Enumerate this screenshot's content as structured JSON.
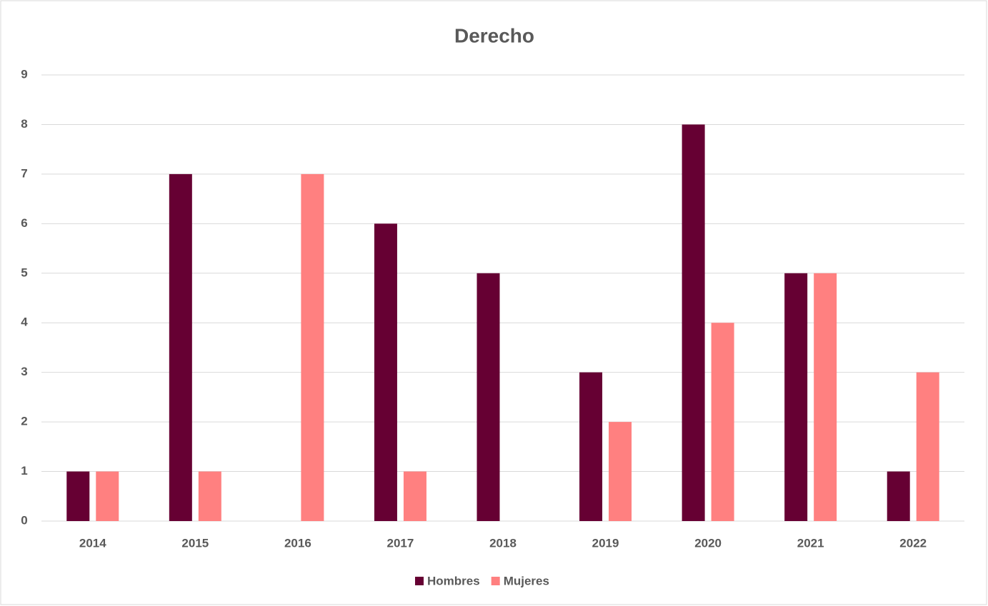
{
  "chart_data": {
    "type": "bar",
    "title": "Derecho",
    "categories": [
      "2014",
      "2015",
      "2016",
      "2017",
      "2018",
      "2019",
      "2020",
      "2021",
      "2022"
    ],
    "series": [
      {
        "name": "Hombres",
        "color": "#660033",
        "values": [
          1,
          7,
          0,
          6,
          5,
          3,
          8,
          5,
          1
        ]
      },
      {
        "name": "Mujeres",
        "color": "#ff8080",
        "values": [
          1,
          1,
          7,
          1,
          0,
          2,
          4,
          5,
          3
        ]
      }
    ],
    "ylim": [
      0,
      9
    ],
    "yticks": [
      0,
      1,
      2,
      3,
      4,
      5,
      6,
      7,
      8,
      9
    ],
    "grid": true,
    "legend": "bottom"
  }
}
